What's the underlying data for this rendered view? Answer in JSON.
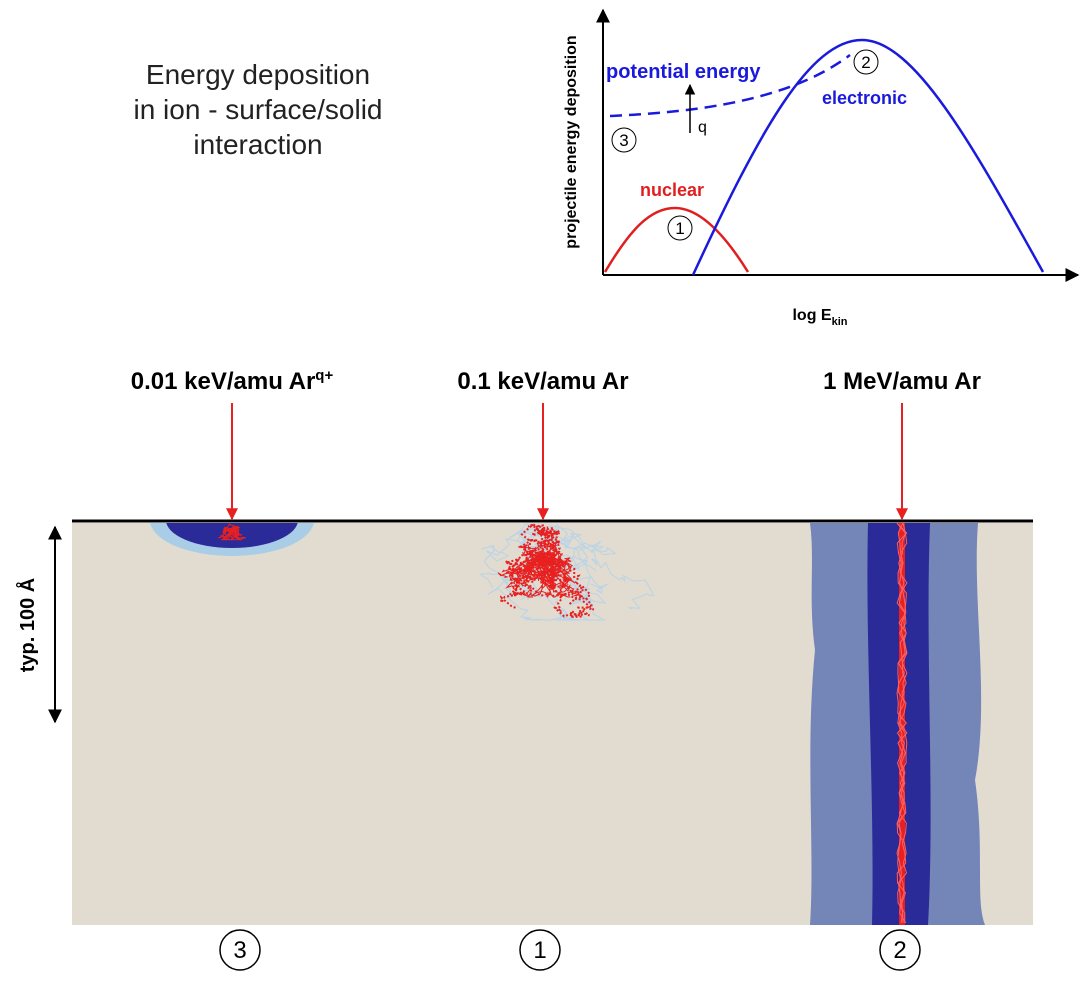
{
  "title": [
    "Energy deposition",
    "in ion - surface/solid",
    "interaction"
  ],
  "inset": {
    "y_axis_label": "projectile energy deposition",
    "x_axis_label": {
      "main": "log E",
      "sub": "kin"
    },
    "curves": [
      {
        "label": "nuclear",
        "number": "1"
      },
      {
        "label": "electronic",
        "number": "2"
      },
      {
        "label": "potential energy",
        "number": "3"
      }
    ],
    "charge_label": "q"
  },
  "beams": [
    {
      "label": "0.01 keV/amu Ar",
      "superscript": "q+",
      "number": "3"
    },
    {
      "label": "0.1 keV/amu Ar",
      "number": "1"
    },
    {
      "label": "1 MeV/amu Ar",
      "number": "2"
    }
  ],
  "depth_label": "typ. 100 Å"
}
